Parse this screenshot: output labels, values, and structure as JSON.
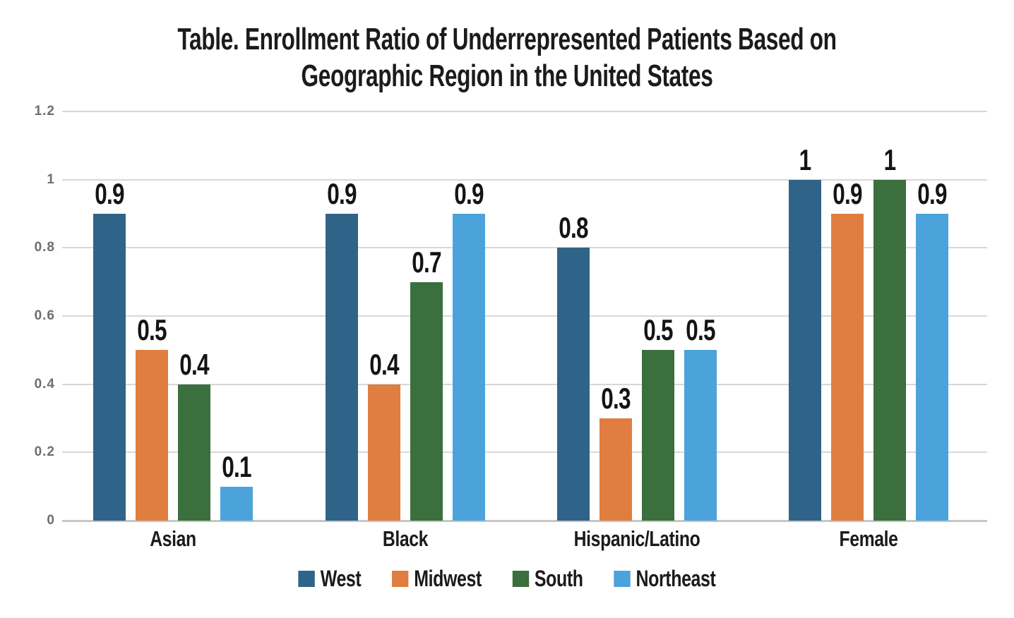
{
  "page": {
    "background": "#FFFFFF"
  },
  "title": {
    "full": "Table. Enrollment Ratio of Underrepresented Patients Based on Geographic Region in the United States",
    "line1": "Table. Enrollment Ratio of Underrepresented Patients Based on",
    "line2": "Geographic Region in the United States"
  },
  "chart_data": {
    "type": "bar",
    "title": "Table. Enrollment Ratio of Underrepresented Patients Based on Geographic Region in the United States",
    "categories": [
      "Asian",
      "Black",
      "Hispanic/Latino",
      "Female"
    ],
    "series": [
      {
        "name": "West",
        "color": "#2F6488",
        "values": [
          0.9,
          0.9,
          0.8,
          1
        ]
      },
      {
        "name": "Midwest",
        "color": "#DF7E40",
        "values": [
          0.5,
          0.4,
          0.3,
          0.9
        ]
      },
      {
        "name": "South",
        "color": "#3B6F3E",
        "values": [
          0.4,
          0.7,
          0.5,
          1
        ]
      },
      {
        "name": "Northeast",
        "color": "#4CA3DB",
        "values": [
          0.1,
          0.9,
          0.5,
          0.9
        ]
      }
    ],
    "y_ticks": [
      0,
      0.2,
      0.4,
      0.6,
      0.8,
      1,
      1.2
    ],
    "ylim": [
      0,
      1.2
    ],
    "xlabel": "",
    "ylabel": "",
    "grid": true,
    "data_labels": true,
    "legend_position": "bottom"
  },
  "style": {
    "grid_color": "#D7D7D7",
    "axis_color": "#C6C6C6",
    "tick_label_color": "#6E6E6E",
    "text_color": "#1B1B1B"
  }
}
